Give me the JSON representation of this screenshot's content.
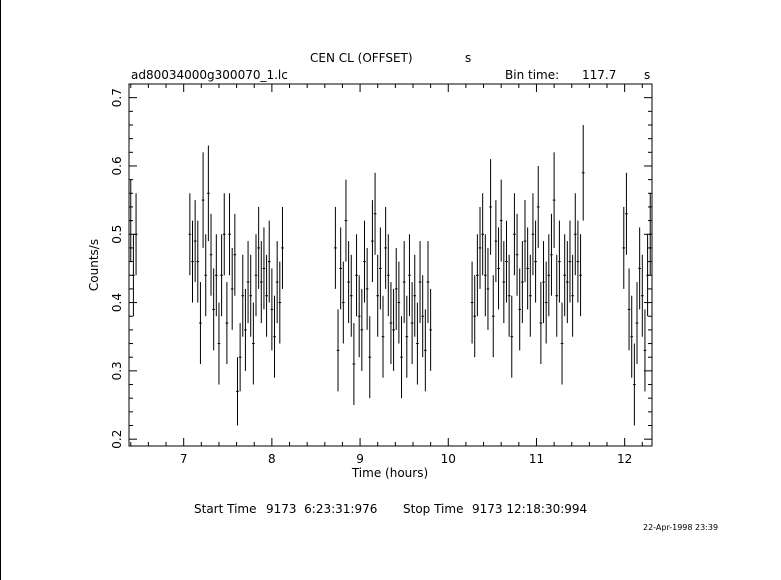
{
  "chart_data": {
    "type": "scatter",
    "title": "CEN CL (OFFSET)",
    "title_unit": "s",
    "file_label": "ad80034000g300070_1.lc",
    "bin_time_label": "Bin time:",
    "bin_time_value": "117.7",
    "bin_time_unit": "s",
    "xlabel": "Time (hours)",
    "ylabel": "Counts/s",
    "xlim": [
      6.38,
      12.31
    ],
    "ylim": [
      0.19,
      0.72
    ],
    "x_ticks": [
      "7",
      "8",
      "9",
      "10",
      "11",
      "12"
    ],
    "y_ticks": [
      "0.2",
      "0.3",
      "0.4",
      "0.5",
      "0.6",
      "0.7"
    ],
    "points": [
      [
        6.4,
        0.52,
        0.06
      ],
      [
        6.43,
        0.44,
        0.06
      ],
      [
        6.46,
        0.5,
        0.06
      ],
      [
        7.07,
        0.5,
        0.06
      ],
      [
        7.1,
        0.46,
        0.06
      ],
      [
        7.13,
        0.49,
        0.06
      ],
      [
        7.16,
        0.46,
        0.06
      ],
      [
        7.19,
        0.37,
        0.06
      ],
      [
        7.22,
        0.55,
        0.07
      ],
      [
        7.25,
        0.44,
        0.06
      ],
      [
        7.28,
        0.56,
        0.07
      ],
      [
        7.31,
        0.47,
        0.06
      ],
      [
        7.34,
        0.39,
        0.06
      ],
      [
        7.37,
        0.44,
        0.06
      ],
      [
        7.4,
        0.34,
        0.06
      ],
      [
        7.43,
        0.44,
        0.06
      ],
      [
        7.46,
        0.5,
        0.06
      ],
      [
        7.49,
        0.37,
        0.06
      ],
      [
        7.52,
        0.5,
        0.06
      ],
      [
        7.55,
        0.42,
        0.06
      ],
      [
        7.58,
        0.47,
        0.06
      ],
      [
        7.61,
        0.27,
        0.05
      ],
      [
        7.64,
        0.32,
        0.05
      ],
      [
        7.67,
        0.41,
        0.06
      ],
      [
        7.7,
        0.36,
        0.06
      ],
      [
        7.73,
        0.43,
        0.06
      ],
      [
        7.76,
        0.41,
        0.06
      ],
      [
        7.79,
        0.34,
        0.06
      ],
      [
        7.82,
        0.44,
        0.06
      ],
      [
        7.85,
        0.48,
        0.06
      ],
      [
        7.88,
        0.43,
        0.06
      ],
      [
        7.91,
        0.45,
        0.06
      ],
      [
        7.94,
        0.41,
        0.06
      ],
      [
        7.97,
        0.46,
        0.06
      ],
      [
        8.0,
        0.39,
        0.06
      ],
      [
        8.03,
        0.35,
        0.06
      ],
      [
        8.06,
        0.43,
        0.06
      ],
      [
        8.09,
        0.4,
        0.06
      ],
      [
        8.12,
        0.48,
        0.06
      ],
      [
        8.72,
        0.48,
        0.06
      ],
      [
        8.75,
        0.33,
        0.06
      ],
      [
        8.78,
        0.45,
        0.06
      ],
      [
        8.81,
        0.4,
        0.06
      ],
      [
        8.84,
        0.52,
        0.06
      ],
      [
        8.87,
        0.43,
        0.06
      ],
      [
        8.9,
        0.41,
        0.06
      ],
      [
        8.93,
        0.31,
        0.06
      ],
      [
        8.96,
        0.44,
        0.06
      ],
      [
        8.99,
        0.38,
        0.06
      ],
      [
        9.02,
        0.36,
        0.06
      ],
      [
        9.05,
        0.46,
        0.06
      ],
      [
        9.08,
        0.42,
        0.06
      ],
      [
        9.11,
        0.32,
        0.06
      ],
      [
        9.14,
        0.49,
        0.06
      ],
      [
        9.17,
        0.53,
        0.06
      ],
      [
        9.2,
        0.41,
        0.06
      ],
      [
        9.23,
        0.45,
        0.06
      ],
      [
        9.26,
        0.35,
        0.06
      ],
      [
        9.29,
        0.48,
        0.06
      ],
      [
        9.32,
        0.44,
        0.06
      ],
      [
        9.35,
        0.37,
        0.06
      ],
      [
        9.38,
        0.36,
        0.06
      ],
      [
        9.41,
        0.42,
        0.06
      ],
      [
        9.44,
        0.4,
        0.06
      ],
      [
        9.47,
        0.32,
        0.06
      ],
      [
        9.5,
        0.43,
        0.06
      ],
      [
        9.53,
        0.35,
        0.06
      ],
      [
        9.56,
        0.44,
        0.06
      ],
      [
        9.59,
        0.37,
        0.06
      ],
      [
        9.62,
        0.41,
        0.06
      ],
      [
        9.65,
        0.34,
        0.06
      ],
      [
        9.68,
        0.43,
        0.06
      ],
      [
        9.71,
        0.38,
        0.06
      ],
      [
        9.74,
        0.33,
        0.06
      ],
      [
        9.77,
        0.43,
        0.06
      ],
      [
        9.8,
        0.36,
        0.06
      ],
      [
        10.27,
        0.4,
        0.06
      ],
      [
        10.3,
        0.38,
        0.06
      ],
      [
        10.33,
        0.44,
        0.06
      ],
      [
        10.36,
        0.48,
        0.06
      ],
      [
        10.39,
        0.5,
        0.06
      ],
      [
        10.42,
        0.44,
        0.06
      ],
      [
        10.45,
        0.42,
        0.06
      ],
      [
        10.48,
        0.54,
        0.07
      ],
      [
        10.51,
        0.38,
        0.06
      ],
      [
        10.54,
        0.49,
        0.06
      ],
      [
        10.57,
        0.45,
        0.06
      ],
      [
        10.6,
        0.52,
        0.06
      ],
      [
        10.63,
        0.43,
        0.06
      ],
      [
        10.66,
        0.46,
        0.06
      ],
      [
        10.69,
        0.41,
        0.06
      ],
      [
        10.72,
        0.35,
        0.06
      ],
      [
        10.75,
        0.5,
        0.06
      ],
      [
        10.78,
        0.47,
        0.06
      ],
      [
        10.81,
        0.39,
        0.06
      ],
      [
        10.84,
        0.43,
        0.06
      ],
      [
        10.87,
        0.49,
        0.06
      ],
      [
        10.9,
        0.45,
        0.06
      ],
      [
        10.93,
        0.41,
        0.06
      ],
      [
        10.96,
        0.5,
        0.06
      ],
      [
        10.99,
        0.46,
        0.06
      ],
      [
        11.02,
        0.54,
        0.06
      ],
      [
        11.05,
        0.37,
        0.06
      ],
      [
        11.08,
        0.43,
        0.06
      ],
      [
        11.11,
        0.4,
        0.06
      ],
      [
        11.14,
        0.44,
        0.06
      ],
      [
        11.17,
        0.47,
        0.06
      ],
      [
        11.2,
        0.55,
        0.07
      ],
      [
        11.23,
        0.41,
        0.06
      ],
      [
        11.26,
        0.46,
        0.06
      ],
      [
        11.29,
        0.34,
        0.06
      ],
      [
        11.32,
        0.44,
        0.06
      ],
      [
        11.35,
        0.43,
        0.06
      ],
      [
        11.38,
        0.46,
        0.06
      ],
      [
        11.41,
        0.41,
        0.06
      ],
      [
        11.44,
        0.5,
        0.06
      ],
      [
        11.47,
        0.46,
        0.06
      ],
      [
        11.5,
        0.44,
        0.06
      ],
      [
        11.53,
        0.59,
        0.07
      ],
      [
        11.99,
        0.48,
        0.06
      ],
      [
        12.02,
        0.53,
        0.06
      ],
      [
        12.05,
        0.39,
        0.06
      ],
      [
        12.08,
        0.35,
        0.06
      ],
      [
        12.11,
        0.28,
        0.06
      ],
      [
        12.14,
        0.37,
        0.06
      ],
      [
        12.17,
        0.45,
        0.06
      ],
      [
        12.2,
        0.41,
        0.06
      ],
      [
        12.23,
        0.33,
        0.06
      ],
      [
        12.26,
        0.44,
        0.06
      ],
      [
        12.29,
        0.5,
        0.06
      ]
    ]
  },
  "footer": {
    "start_label": "Start Time",
    "start_value": "9173  6:23:31:976",
    "stop_label": "Stop Time",
    "stop_value": "9173 12:18:30:994",
    "timestamp": "22-Apr-1998 23:39"
  }
}
